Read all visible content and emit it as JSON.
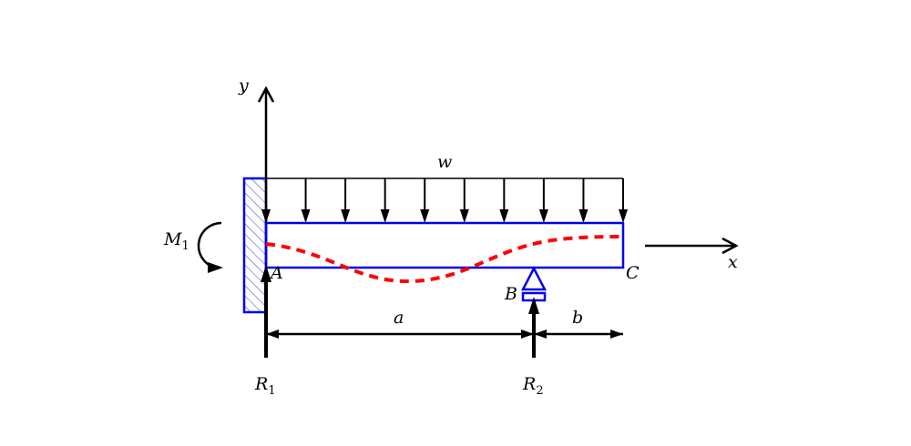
{
  "labels": {
    "y_axis": "y",
    "x_axis": "x",
    "load": "w",
    "moment": "M",
    "moment_sub": "1",
    "point_a": "A",
    "point_b": "B",
    "point_c": "C",
    "reaction1": "R",
    "reaction1_sub": "1",
    "reaction2": "R",
    "reaction2_sub": "2",
    "dim_a": "a",
    "dim_b": "b"
  },
  "colors": {
    "beam": "#0000ee",
    "deflection": "#ff0000",
    "lines": "#000000"
  },
  "load_arrow_count": 10
}
